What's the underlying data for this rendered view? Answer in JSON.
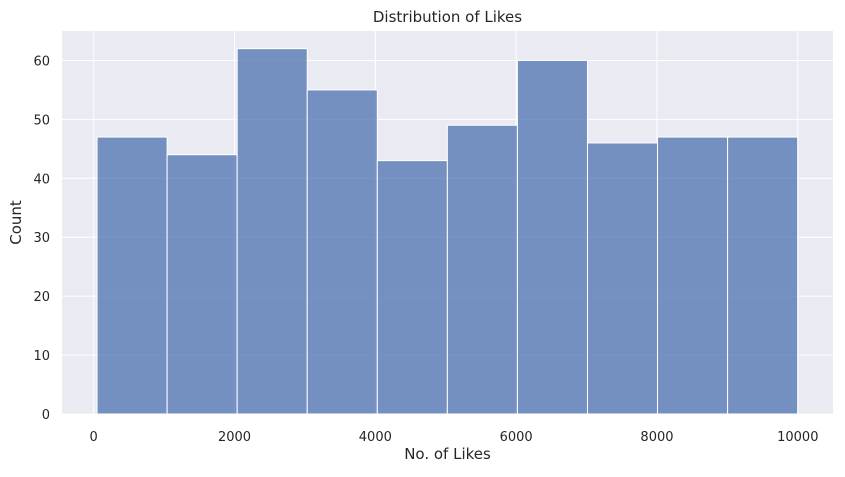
{
  "chart_data": {
    "type": "bar",
    "title": "Distribution of Likes",
    "xlabel": "No. of Likes",
    "ylabel": "Count",
    "bins": [
      {
        "start": 48,
        "end": 1043,
        "count": 47
      },
      {
        "start": 1043,
        "end": 2038,
        "count": 44
      },
      {
        "start": 2038,
        "end": 3033,
        "count": 62
      },
      {
        "start": 3033,
        "end": 4028,
        "count": 55
      },
      {
        "start": 4028,
        "end": 5023,
        "count": 43
      },
      {
        "start": 5023,
        "end": 6018,
        "count": 49
      },
      {
        "start": 6018,
        "end": 7013,
        "count": 60
      },
      {
        "start": 7013,
        "end": 8008,
        "count": 46
      },
      {
        "start": 8008,
        "end": 9003,
        "count": 47
      },
      {
        "start": 9003,
        "end": 9998,
        "count": 47
      }
    ],
    "xlim": [
      -450,
      10500
    ],
    "ylim": [
      0,
      65
    ],
    "xticks": [
      0,
      2000,
      4000,
      6000,
      8000,
      10000
    ],
    "xtick_labels": [
      "0",
      "2000",
      "4000",
      "6000",
      "8000",
      "10000"
    ],
    "yticks": [
      0,
      10,
      20,
      30,
      40,
      50,
      60
    ],
    "ytick_labels": [
      "0",
      "10",
      "20",
      "30",
      "40",
      "50",
      "60"
    ],
    "grid": true,
    "colors": {
      "background": "#eaeaf2",
      "bar_fill": "#4c72b0",
      "bar_edge": "#ffffff",
      "grid": "#ffffff"
    }
  }
}
